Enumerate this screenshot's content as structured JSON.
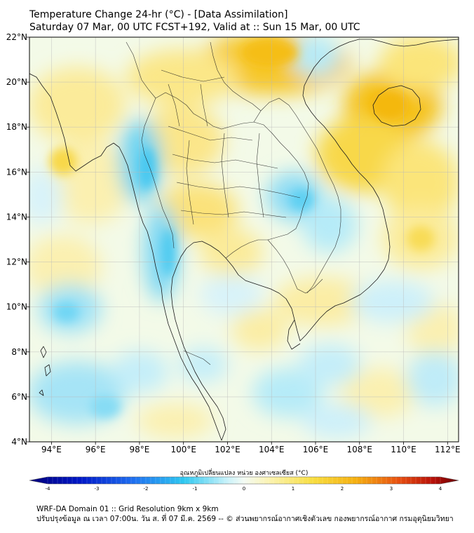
{
  "header": {
    "title": "Temperature Change 24-hr (°C) - [Data Assimilation]",
    "subtitle": "Saturday 07 Mar, 00 UTC FCST+192, Valid at :: Sun 15 Mar, 00 UTC"
  },
  "map": {
    "lon_range": [
      93,
      112.5
    ],
    "lat_range": [
      4,
      22
    ],
    "lon_ticks": [
      "94°E",
      "96°E",
      "98°E",
      "100°E",
      "102°E",
      "104°E",
      "106°E",
      "108°E",
      "110°E",
      "112°E"
    ],
    "lat_ticks": [
      "22°N",
      "20°N",
      "18°N",
      "16°N",
      "14°N",
      "12°N",
      "10°N",
      "8°N",
      "6°N",
      "4°N"
    ],
    "gridlines": true,
    "field_colors": {
      "cool_strong": "#46c8f0",
      "cool_light": "#bfeefa",
      "neutral": "#f4fbf4",
      "warm_light": "#fbf1a6",
      "warm_strong": "#f5c21a"
    }
  },
  "colorbar": {
    "title": "อุณหภูมิเปลี่ยนแปลง หน่วย องศาเซลเซียส (°C)",
    "ticks": [
      "-4",
      "-3",
      "-2",
      "-1",
      "0",
      "1",
      "2",
      "3",
      "4"
    ],
    "range": [
      -4,
      4
    ]
  },
  "footer": {
    "line1": "WRF-DA Domain 01 :: Grid Resolution 9km x 9km",
    "line2": "ปรับปรุงข้อมูล ณ เวลา 07:00น. วัน ส. ที่ 07 มี.ค. 2569 -- © ส่วนพยากรณ์อากาศเชิงตัวเลข กองพยากรณ์อากาศ กรมอุตุนิยมวิทยา"
  }
}
